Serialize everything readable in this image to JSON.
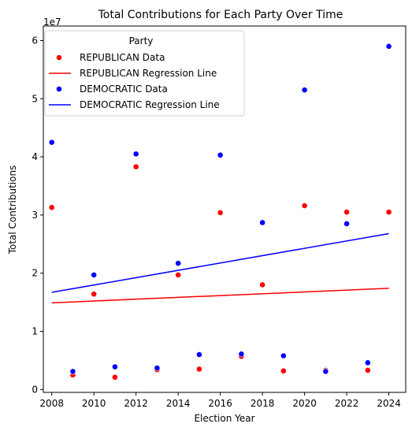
{
  "chart_data": {
    "type": "scatter",
    "title": "Total Contributions for Each Party Over Time",
    "xlabel": "Election Year",
    "ylabel": "Total Contributions",
    "y_exponent_label": "1e7",
    "xlim": [
      2007.6,
      2024.8
    ],
    "ylim": [
      -500000,
      62500000
    ],
    "x_ticks": [
      2008,
      2010,
      2012,
      2014,
      2016,
      2018,
      2020,
      2022,
      2024
    ],
    "y_ticks": [
      0,
      10000000,
      20000000,
      30000000,
      40000000,
      50000000,
      60000000
    ],
    "y_tick_labels": [
      "0",
      "1",
      "2",
      "3",
      "4",
      "5",
      "6"
    ],
    "grid": false,
    "legend": {
      "title": "Party",
      "placement": "top-left"
    },
    "series": [
      {
        "name": "REPUBLICAN Data",
        "kind": "scatter",
        "color": "#ff0000",
        "points": [
          {
            "x": 2008,
            "y": 31300000
          },
          {
            "x": 2009,
            "y": 2500000
          },
          {
            "x": 2010,
            "y": 16400000
          },
          {
            "x": 2011,
            "y": 2100000
          },
          {
            "x": 2012,
            "y": 38300000
          },
          {
            "x": 2013,
            "y": 3400000
          },
          {
            "x": 2014,
            "y": 19700000
          },
          {
            "x": 2015,
            "y": 3500000
          },
          {
            "x": 2016,
            "y": 30400000
          },
          {
            "x": 2017,
            "y": 5700000
          },
          {
            "x": 2018,
            "y": 18000000
          },
          {
            "x": 2019,
            "y": 3200000
          },
          {
            "x": 2020,
            "y": 31600000
          },
          {
            "x": 2021,
            "y": 3300000
          },
          {
            "x": 2022,
            "y": 30500000
          },
          {
            "x": 2023,
            "y": 3300000
          },
          {
            "x": 2024,
            "y": 30500000
          }
        ]
      },
      {
        "name": "REPUBLICAN Regression Line",
        "kind": "line",
        "color": "#ff0000",
        "points": [
          {
            "x": 2008,
            "y": 14900000
          },
          {
            "x": 2024,
            "y": 17400000
          }
        ]
      },
      {
        "name": "DEMOCRATIC Data",
        "kind": "scatter",
        "color": "#0000ff",
        "points": [
          {
            "x": 2008,
            "y": 42500000
          },
          {
            "x": 2009,
            "y": 3100000
          },
          {
            "x": 2010,
            "y": 19700000
          },
          {
            "x": 2011,
            "y": 3900000
          },
          {
            "x": 2012,
            "y": 40500000
          },
          {
            "x": 2013,
            "y": 3700000
          },
          {
            "x": 2014,
            "y": 21700000
          },
          {
            "x": 2015,
            "y": 6000000
          },
          {
            "x": 2016,
            "y": 40300000
          },
          {
            "x": 2017,
            "y": 6100000
          },
          {
            "x": 2018,
            "y": 28700000
          },
          {
            "x": 2019,
            "y": 5800000
          },
          {
            "x": 2020,
            "y": 51500000
          },
          {
            "x": 2021,
            "y": 3100000
          },
          {
            "x": 2022,
            "y": 28500000
          },
          {
            "x": 2023,
            "y": 4600000
          },
          {
            "x": 2024,
            "y": 59000000
          }
        ]
      },
      {
        "name": "DEMOCRATIC Regression Line",
        "kind": "line",
        "color": "#0000ff",
        "points": [
          {
            "x": 2008,
            "y": 16700000
          },
          {
            "x": 2024,
            "y": 26800000
          }
        ]
      }
    ]
  }
}
